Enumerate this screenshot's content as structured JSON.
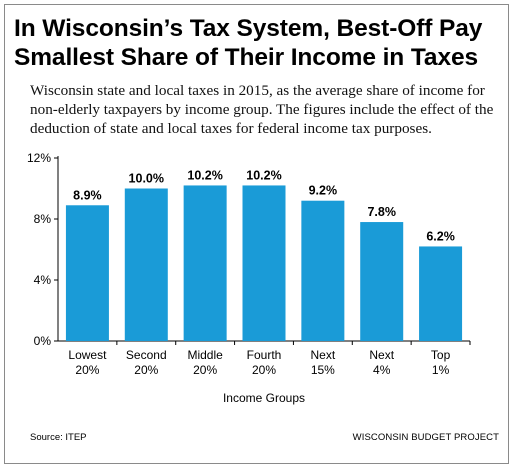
{
  "title": "In Wisconsin’s Tax System, Best-Off Pay Smallest Share of Their Income in Taxes",
  "subtitle": "Wisconsin state and local taxes in 2015, as the average share of income for non-elderly taxpayers by income group. The figures include the effect of the deduction of state and local taxes for federal income tax purposes.",
  "source": "Source: ITEP",
  "brand": "WISCONSIN BUDGET PROJECT",
  "colors": {
    "bar": "#1a9bd7",
    "axis": "#000000",
    "border": "#8a8a8a"
  },
  "chart_data": {
    "type": "bar",
    "categories": [
      [
        "Lowest",
        "20%"
      ],
      [
        "Second",
        "20%"
      ],
      [
        "Middle",
        "20%"
      ],
      [
        "Fourth",
        "20%"
      ],
      [
        "Next",
        "15%"
      ],
      [
        "Next",
        "4%"
      ],
      [
        "Top",
        "1%"
      ]
    ],
    "values": [
      8.9,
      10.0,
      10.2,
      10.2,
      9.2,
      7.8,
      6.2
    ],
    "data_labels": [
      "8.9%",
      "10.0%",
      "10.2%",
      "10.2%",
      "9.2%",
      "7.8%",
      "6.2%"
    ],
    "xlabel": "Income Groups",
    "ylabel": "",
    "ylim": [
      0,
      12
    ],
    "yticks": [
      0,
      4,
      8,
      12
    ],
    "ytick_labels": [
      "0%",
      "4%",
      "8%",
      "12%"
    ],
    "grid": false,
    "legend": "none"
  }
}
